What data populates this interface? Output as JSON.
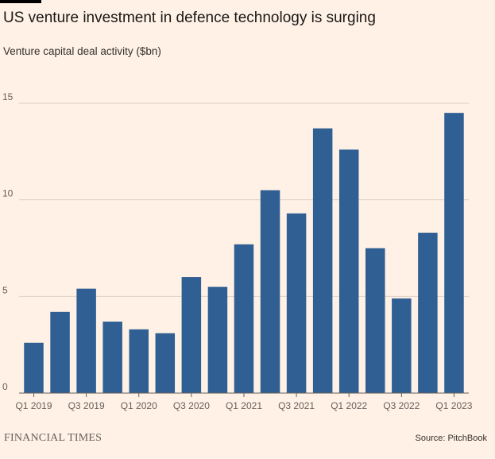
{
  "chart_data": {
    "type": "bar",
    "title": "US venture investment in defence technology is surging",
    "subtitle": "Venture capital deal activity ($bn)",
    "xlabel": "",
    "ylabel": "Venture capital deal activity ($bn)",
    "ylim": [
      0,
      15
    ],
    "yticks": [
      "0",
      "5",
      "10",
      "15"
    ],
    "ytick_values": [
      0,
      5,
      10,
      15
    ],
    "grid": true,
    "categories": [
      "Q1 2019",
      "Q2 2019",
      "Q3 2019",
      "Q4 2019",
      "Q1 2020",
      "Q2 2020",
      "Q3 2020",
      "Q4 2020",
      "Q1 2021",
      "Q2 2021",
      "Q3 2021",
      "Q4 2021",
      "Q1 2022",
      "Q2 2022",
      "Q3 2022",
      "Q4 2022",
      "Q1 2023"
    ],
    "xtick_labels": [
      "Q1 2019",
      "Q3 2019",
      "Q1 2020",
      "Q3 2020",
      "Q1 2021",
      "Q3 2021",
      "Q1 2022",
      "Q3 2022",
      "Q1 2023"
    ],
    "xtick_indices": [
      0,
      2,
      4,
      6,
      8,
      10,
      12,
      14,
      16
    ],
    "values": [
      2.6,
      4.2,
      5.4,
      3.7,
      3.3,
      3.1,
      6.0,
      5.5,
      7.7,
      10.5,
      9.3,
      13.7,
      12.6,
      7.5,
      4.9,
      8.3,
      14.5
    ],
    "bar_color": "#2f5f93"
  },
  "footer": {
    "brand": "FINANCIAL TIMES",
    "source": "Source: PitchBook"
  }
}
